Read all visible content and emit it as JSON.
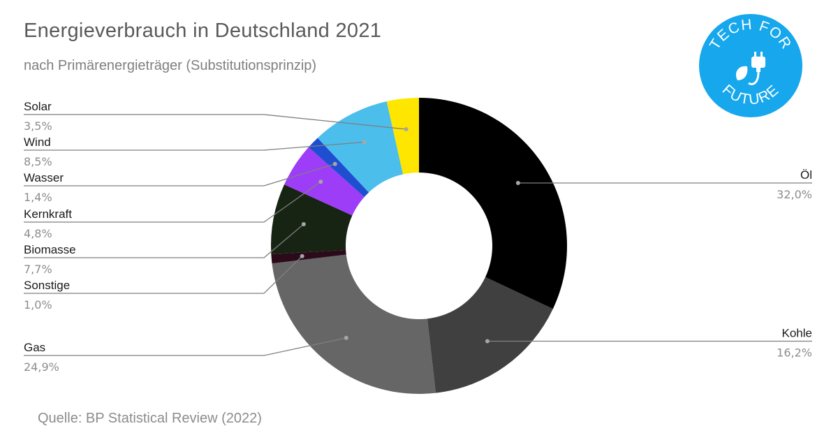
{
  "chart_data": {
    "type": "pie",
    "variant": "donut",
    "title": "Energieverbrauch in Deutschland 2021",
    "subtitle": "nach Primärenergieträger (Substitutionsprinzip)",
    "source": "Quelle: BP Statistical Review (2022)",
    "slices": [
      {
        "name": "Öl",
        "value": 32.0,
        "label": "32,0%",
        "color": "#000000"
      },
      {
        "name": "Kohle",
        "value": 16.2,
        "label": "16,2%",
        "color": "#404040"
      },
      {
        "name": "Gas",
        "value": 24.9,
        "label": "24,9%",
        "color": "#666666"
      },
      {
        "name": "Sonstige",
        "value": 1.0,
        "label": "1,0%",
        "color": "#2b0a1a"
      },
      {
        "name": "Biomasse",
        "value": 7.7,
        "label": "7,7%",
        "color": "#172313"
      },
      {
        "name": "Kernkraft",
        "value": 4.8,
        "label": "4,8%",
        "color": "#9d3df8"
      },
      {
        "name": "Wasser",
        "value": 1.4,
        "label": "1,4%",
        "color": "#1f4fd0"
      },
      {
        "name": "Wind",
        "value": 8.5,
        "label": "8,5%",
        "color": "#4cbeec"
      },
      {
        "name": "Solar",
        "value": 3.5,
        "label": "3,5%",
        "color": "#ffe600"
      }
    ],
    "start_angle": "12 o'clock",
    "direction": "clockwise",
    "label_style": "leader lines"
  },
  "logo": {
    "top_text": "TECH FOR",
    "bottom_text": "FUTURE",
    "icon": "plug-leaf-icon",
    "color": "#16a7ec"
  }
}
